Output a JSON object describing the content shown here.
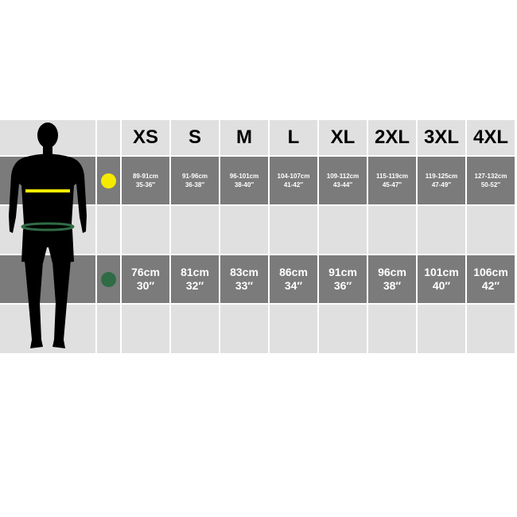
{
  "sizes": [
    "XS",
    "S",
    "M",
    "L",
    "XL",
    "2XL",
    "3XL",
    "4XL"
  ],
  "chest": {
    "marker_color": "#f5eb00",
    "values": [
      {
        "cm": "89-91cm",
        "in": "35-36″"
      },
      {
        "cm": "91-96cm",
        "in": "36-38″"
      },
      {
        "cm": "96-101cm",
        "in": "38-40″"
      },
      {
        "cm": "104-107cm",
        "in": "41-42″"
      },
      {
        "cm": "109-112cm",
        "in": "43-44″"
      },
      {
        "cm": "115-119cm",
        "in": "45-47″"
      },
      {
        "cm": "119-125cm",
        "in": "47-49″"
      },
      {
        "cm": "127-132cm",
        "in": "50-52″"
      }
    ]
  },
  "waist": {
    "marker_color": "#2f6b45",
    "values": [
      {
        "cm": "76cm",
        "in": "30″"
      },
      {
        "cm": "81cm",
        "in": "32″"
      },
      {
        "cm": "83cm",
        "in": "33″"
      },
      {
        "cm": "86cm",
        "in": "34″"
      },
      {
        "cm": "91cm",
        "in": "36″"
      },
      {
        "cm": "96cm",
        "in": "38″"
      },
      {
        "cm": "101cm",
        "in": "40″"
      },
      {
        "cm": "106cm",
        "in": "42″"
      }
    ]
  }
}
